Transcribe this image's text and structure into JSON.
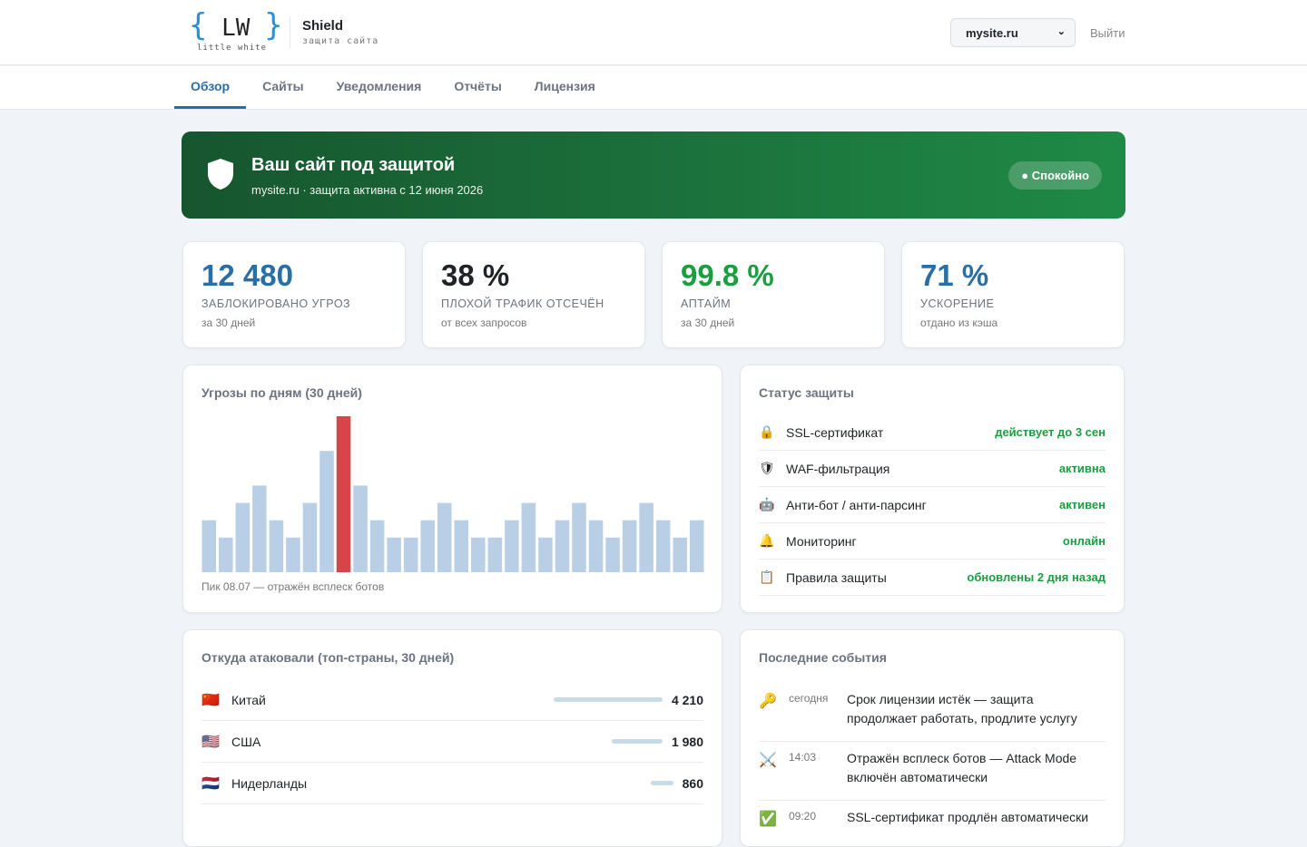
{
  "header": {
    "logo_mark": "LW",
    "logo_sub": "little white",
    "product": "Shield",
    "product_sub": "защита сайта",
    "site_select": "mysite.ru",
    "logout": "Выйти"
  },
  "nav": [
    "Обзор",
    "Сайты",
    "Уведомления",
    "Отчёты",
    "Лицензия"
  ],
  "banner": {
    "title": "Ваш сайт под защитой",
    "subtitle": "mysite.ru · защита активна с 12 июня 2026",
    "badge": "● Спокойно"
  },
  "stats": [
    {
      "value": "12 480",
      "label": "ЗАБЛОКИРОВАНО УГРОЗ",
      "note": "за 30 дней",
      "color": "#2a6ea6"
    },
    {
      "value": "38 %",
      "label": "ПЛОХОЙ ТРАФИК ОТСЕЧЁН",
      "note": "от всех запросов",
      "color": "#1f2328"
    },
    {
      "value": "99.8 %",
      "label": "АПТАЙМ",
      "note": "за 30 дней",
      "color": "#1a9e3f"
    },
    {
      "value": "71 %",
      "label": "УСКОРЕНИЕ",
      "note": "отдано из кэша",
      "color": "#2a6ea6"
    }
  ],
  "chart_data": {
    "type": "bar",
    "title": "Угрозы по дням (30 дней)",
    "caption": "Пик 08.07 — отражён всплеск ботов",
    "values": [
      3,
      2,
      4,
      5,
      3,
      2,
      4,
      7,
      9,
      5,
      3,
      2,
      2,
      3,
      4,
      3,
      2,
      2,
      3,
      4,
      2,
      3,
      4,
      3,
      2,
      3,
      4,
      3,
      2,
      3
    ],
    "colors": [
      "#b8cfe6",
      "#b8cfe6",
      "#b8cfe6",
      "#b8cfe6",
      "#b8cfe6",
      "#b8cfe6",
      "#b8cfe6",
      "#b8cfe6",
      "#d9434a",
      "#b8cfe6",
      "#b8cfe6",
      "#b8cfe6",
      "#b8cfe6",
      "#b8cfe6",
      "#b8cfe6",
      "#b8cfe6",
      "#b8cfe6",
      "#b8cfe6",
      "#b8cfe6",
      "#b8cfe6",
      "#b8cfe6",
      "#b8cfe6",
      "#b8cfe6",
      "#b8cfe6",
      "#b8cfe6",
      "#b8cfe6",
      "#b8cfe6",
      "#b8cfe6",
      "#b8cfe6",
      "#b8cfe6"
    ],
    "ylim": [
      0,
      9
    ]
  },
  "status": {
    "title": "Статус защиты",
    "rows": [
      {
        "icon": "🔒",
        "name": "SSL-сертификат",
        "state": "действует до 3 сен"
      },
      {
        "icon": "🛡",
        "name": "WAF-фильтрация",
        "state": "активна"
      },
      {
        "icon": "🤖",
        "name": "Анти-бот / анти-парсинг",
        "state": "активен"
      },
      {
        "icon": "🔔",
        "name": "Мониторинг",
        "state": "онлайн"
      },
      {
        "icon": "📋",
        "name": "Правила защиты",
        "state": "обновлены 2 дня назад"
      }
    ]
  },
  "countries": {
    "title": "Откуда атаковали (топ-страны, 30 дней)",
    "rows": [
      {
        "flag": "🇨🇳",
        "name": "Китай",
        "value": 4210,
        "label": "4 210"
      },
      {
        "flag": "🇺🇸",
        "name": "США",
        "value": 1980,
        "label": "1 980"
      },
      {
        "flag": "🇳🇱",
        "name": "Нидерланды",
        "value": 860,
        "label": "860"
      }
    ]
  },
  "events": {
    "title": "Последние события",
    "rows": [
      {
        "icon": "🔑",
        "time": "сегодня",
        "text": "Срок лицензии истёк — защита продолжает работать, продлите услугу"
      },
      {
        "icon": "⚔️",
        "time": "14:03",
        "text": "Отражён всплеск ботов — Attack Mode включён автоматически"
      },
      {
        "icon": "✅",
        "time": "09:20",
        "text": "SSL-сертификат продлён автоматически"
      }
    ]
  }
}
